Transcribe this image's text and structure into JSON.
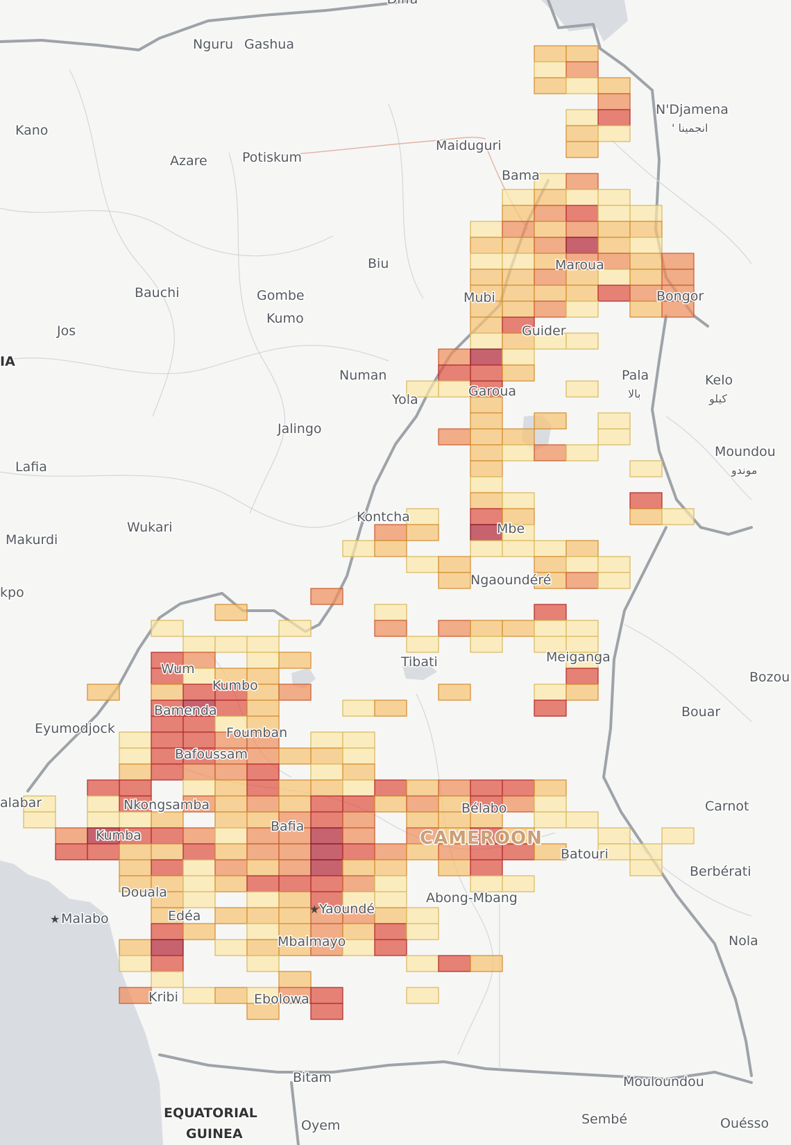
{
  "map": {
    "palette": {
      "c1": "#fbe7a9",
      "c2": "#f6c374",
      "c3": "#ee8f5e",
      "c4": "#de5344",
      "c5": "#b4283c"
    },
    "water_color": "#d9dde2",
    "road_color": "#e3b2a2",
    "labels": [
      {
        "id": "diffa",
        "text": "Diffa"
      },
      {
        "id": "nguru",
        "text": "Nguru"
      },
      {
        "id": "gashua",
        "text": "Gashua"
      },
      {
        "id": "kano",
        "text": "Kano"
      },
      {
        "id": "azare",
        "text": "Azare"
      },
      {
        "id": "potiskum",
        "text": "Potiskum"
      },
      {
        "id": "maiduguri",
        "text": "Maiduguri"
      },
      {
        "id": "bama",
        "text": "Bama"
      },
      {
        "id": "ndjamena",
        "text": "N'Djamena"
      },
      {
        "id": "ndjamena-ar",
        "text": "' انجمينا"
      },
      {
        "id": "biu",
        "text": "Biu"
      },
      {
        "id": "bauchi",
        "text": "Bauchi"
      },
      {
        "id": "gombe",
        "text": "Gombe"
      },
      {
        "id": "kumo",
        "text": "Kumo"
      },
      {
        "id": "jos",
        "text": "Jos"
      },
      {
        "id": "ia",
        "text": "IA"
      },
      {
        "id": "maroua",
        "text": "Maroua"
      },
      {
        "id": "mubi",
        "text": "Mubi"
      },
      {
        "id": "bongor",
        "text": "Bongor"
      },
      {
        "id": "guider",
        "text": "Guider"
      },
      {
        "id": "numan",
        "text": "Numan"
      },
      {
        "id": "yola",
        "text": "Yola"
      },
      {
        "id": "garoua",
        "text": "Garoua"
      },
      {
        "id": "pala",
        "text": "Pala"
      },
      {
        "id": "pala-ar",
        "text": "بالا"
      },
      {
        "id": "kelo",
        "text": "Kelo"
      },
      {
        "id": "kelo-ar",
        "text": "كيلو"
      },
      {
        "id": "jalingo",
        "text": "Jalingo"
      },
      {
        "id": "lafia",
        "text": "Lafia"
      },
      {
        "id": "moundou",
        "text": "Moundou"
      },
      {
        "id": "moundou-ar",
        "text": "موندو"
      },
      {
        "id": "kontcha",
        "text": "Kontcha"
      },
      {
        "id": "wukari",
        "text": "Wukari"
      },
      {
        "id": "makurdi",
        "text": "Makurdi"
      },
      {
        "id": "mbe",
        "text": "Mbe"
      },
      {
        "id": "ngaoundere",
        "text": "Ngaoundéré"
      },
      {
        "id": "kpo",
        "text": "kpo"
      },
      {
        "id": "tibati",
        "text": "Tibati"
      },
      {
        "id": "meiganga",
        "text": "Meiganga"
      },
      {
        "id": "wum",
        "text": "Wum"
      },
      {
        "id": "kumbo",
        "text": "Kumbo"
      },
      {
        "id": "bozoum",
        "text": "Bozoum"
      },
      {
        "id": "bamenda",
        "text": "Bamenda"
      },
      {
        "id": "bouar",
        "text": "Bouar"
      },
      {
        "id": "eyumodjock",
        "text": "Eyumodjock"
      },
      {
        "id": "foumban",
        "text": "Foumban"
      },
      {
        "id": "bafoussam",
        "text": "Bafoussam"
      },
      {
        "id": "calabar",
        "text": "alabar"
      },
      {
        "id": "nkongsamba",
        "text": "Nkongsamba"
      },
      {
        "id": "belabo",
        "text": "Bélabo"
      },
      {
        "id": "carnot",
        "text": "Carnot"
      },
      {
        "id": "kumba",
        "text": "Kumba"
      },
      {
        "id": "bafia",
        "text": "Bafia"
      },
      {
        "id": "cameroon",
        "text": "CAMEROON"
      },
      {
        "id": "batouri",
        "text": "Batouri"
      },
      {
        "id": "berberati",
        "text": "Berbérati"
      },
      {
        "id": "douala",
        "text": "Douala"
      },
      {
        "id": "malabo",
        "text": "Malabo"
      },
      {
        "id": "edea",
        "text": "Edéa"
      },
      {
        "id": "yaounde",
        "text": "Yaoundé"
      },
      {
        "id": "abong-mbang",
        "text": "Abong-Mbang"
      },
      {
        "id": "mbalmayo",
        "text": "Mbalmayo"
      },
      {
        "id": "nola",
        "text": "Nola"
      },
      {
        "id": "kribi",
        "text": "Kribi"
      },
      {
        "id": "ebolowa",
        "text": "Ebolowa"
      },
      {
        "id": "bitam",
        "text": "Bitam"
      },
      {
        "id": "mouloundou",
        "text": "Mouloundou"
      },
      {
        "id": "equatorial",
        "text": "EQUATORIAL"
      },
      {
        "id": "guinea",
        "text": "GUINEA"
      },
      {
        "id": "oyem",
        "text": "Oyem"
      },
      {
        "id": "sembe",
        "text": "Sembé"
      },
      {
        "id": "ouesso",
        "text": "Ouésso"
      }
    ]
  }
}
